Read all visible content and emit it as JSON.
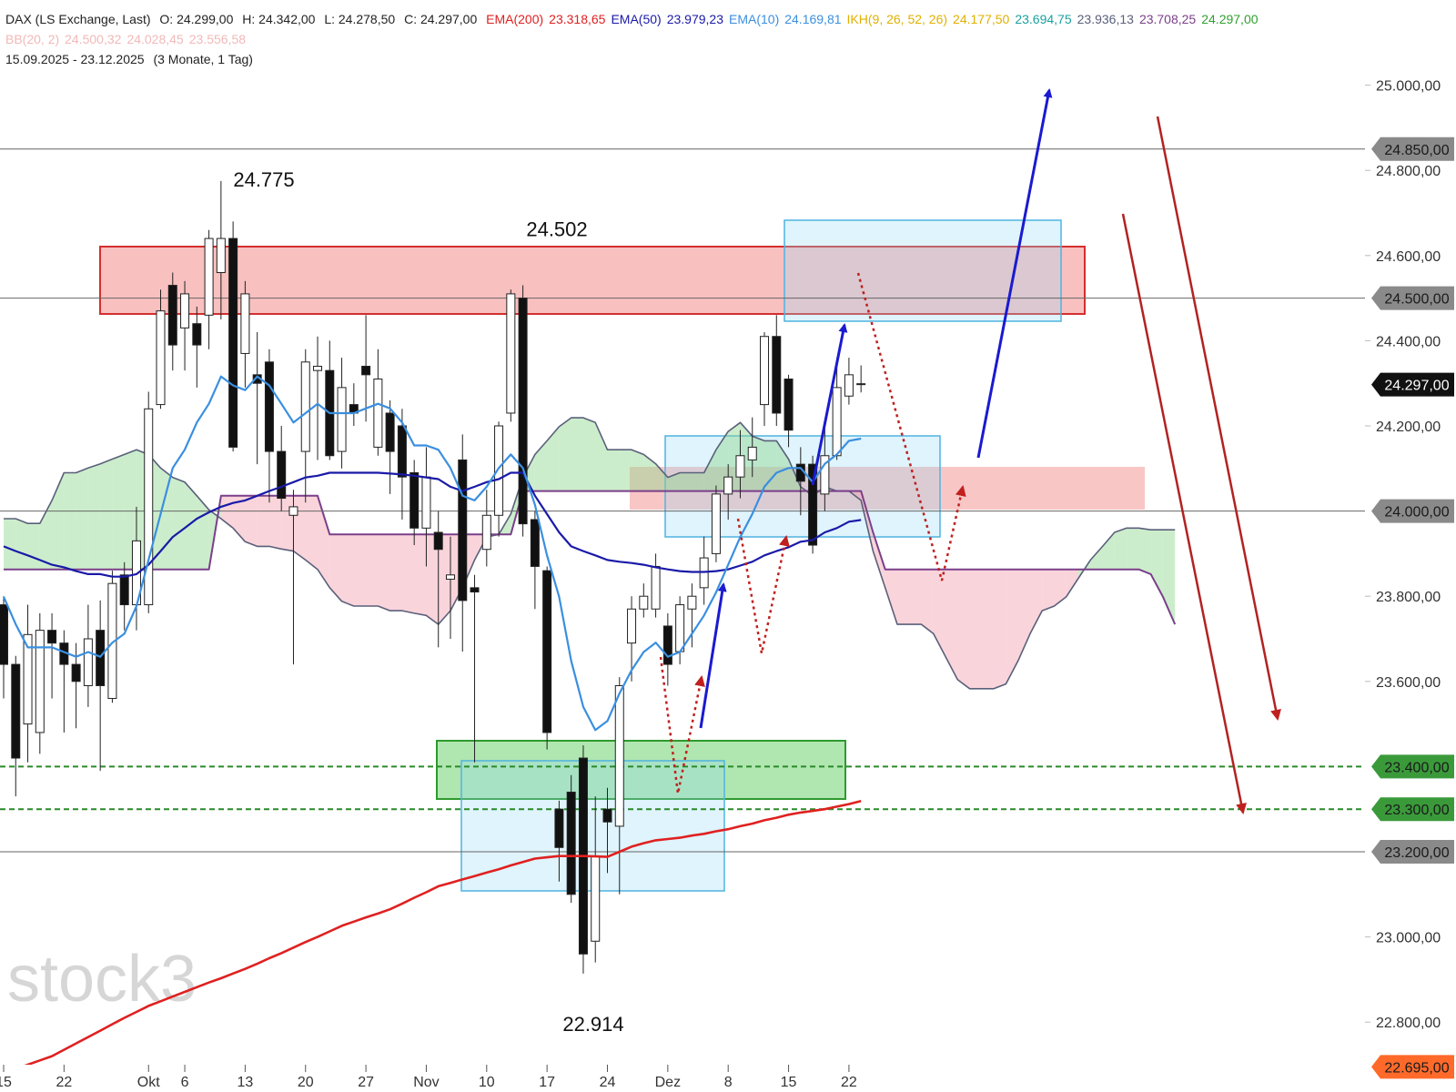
{
  "chart_data": {
    "type": "candlestick",
    "header": {
      "symbol": "DAX (LS Exchange, Last)",
      "ohlc": [
        "O: 24.299,00",
        "H: 24.342,00",
        "L: 24.278,50",
        "C: 24.297,00"
      ],
      "indicators": [
        {
          "name": "IKH(9, 26, 52, 26)",
          "values": [
            "24.177,50",
            "23.694,75",
            "23.936,13",
            "23.708,25",
            "24.297,00"
          ],
          "colors": [
            "#e0b000",
            "#1aa0a0",
            "#5a607a",
            "#7b3f8a",
            "#30a030"
          ]
        },
        {
          "name": "BB(20, 2)",
          "values": [
            "24.500,32",
            "24.028,45",
            "23.556,58"
          ],
          "colors": [
            "#f2b8b8",
            "#f2b8b8",
            "#f2b8b8"
          ]
        }
      ],
      "range": "15.09.2025 - 23.12.2025",
      "range_note": "(3 Monate, 1 Tag)"
    },
    "watermark": "stock3",
    "categories": [
      "15",
      null,
      null,
      null,
      null,
      "22",
      null,
      null,
      null,
      null,
      null,
      null,
      "Okt",
      null,
      null,
      "6",
      null,
      null,
      null,
      null,
      "13",
      null,
      null,
      null,
      null,
      "20",
      null,
      null,
      null,
      null,
      "27",
      null,
      null,
      null,
      null,
      "Nov",
      null,
      null,
      null,
      null,
      "10",
      null,
      null,
      null,
      null,
      "17",
      null,
      null,
      null,
      null,
      "24",
      null,
      null,
      null,
      null,
      "Dez",
      null,
      null,
      null,
      null,
      "8",
      null,
      null,
      null,
      null,
      "15",
      null,
      null,
      null,
      null,
      "22",
      null,
      null,
      null,
      null,
      null,
      null,
      null,
      null,
      null,
      null,
      null,
      null,
      null,
      null,
      null,
      null,
      null,
      null,
      null,
      null,
      null,
      null,
      null,
      null,
      null,
      null,
      null
    ],
    "candles": {
      "open": [
        23780,
        23640,
        23500,
        23480,
        23720,
        23690,
        23640,
        23590,
        23720,
        23560,
        23850,
        23780,
        23780,
        24250,
        24530,
        24430,
        24440,
        24460,
        24560,
        24640,
        24370,
        24320,
        24350,
        24140,
        23990,
        24140,
        24330,
        24330,
        24140,
        24250,
        24340,
        24150,
        24230,
        24200,
        24090,
        23960,
        23950,
        23840,
        24120,
        23820,
        23910,
        23990,
        24230,
        24500,
        23980,
        23860,
        23300,
        23340,
        23420,
        22990,
        23300,
        23260,
        23690,
        23770,
        23770,
        23730,
        23670,
        23770,
        23820,
        23900,
        24040,
        24080,
        24120,
        24250,
        24410,
        24310,
        24110,
        24110,
        24040,
        24130,
        24270,
        24299,
        null,
        null,
        null,
        null,
        null,
        null,
        null,
        null,
        null,
        null,
        null,
        null,
        null,
        null,
        null,
        null,
        null,
        null,
        null,
        null,
        null,
        null,
        null,
        null,
        null,
        null
      ],
      "high": [
        23800,
        23660,
        23780,
        23760,
        23760,
        23720,
        23690,
        23780,
        23790,
        23860,
        23880,
        24010,
        24280,
        24520,
        24560,
        24540,
        24480,
        24660,
        24775,
        24680,
        24540,
        24420,
        24380,
        24200,
        24050,
        24380,
        24410,
        24400,
        24360,
        24300,
        24460,
        24380,
        24260,
        24240,
        24120,
        24150,
        24000,
        23940,
        24180,
        23850,
        24050,
        24210,
        24520,
        24530,
        24000,
        23870,
        23320,
        23380,
        23450,
        23330,
        23350,
        23610,
        23800,
        23830,
        23900,
        23760,
        23800,
        23830,
        23940,
        24060,
        24110,
        24190,
        24220,
        24420,
        24460,
        24320,
        24150,
        24130,
        24200,
        24360,
        24360,
        24342,
        null,
        null,
        null,
        null,
        null,
        null,
        null,
        null,
        null,
        null,
        null,
        null,
        null,
        null,
        null,
        null,
        null,
        null,
        null,
        null,
        null,
        null,
        null,
        null,
        null,
        null
      ],
      "low": [
        23560,
        23330,
        23410,
        23430,
        23560,
        23480,
        23490,
        23540,
        23390,
        23550,
        23720,
        23720,
        23760,
        24240,
        24330,
        24330,
        24290,
        24380,
        24450,
        24140,
        24290,
        24110,
        24020,
        24000,
        23640,
        24020,
        24120,
        24120,
        24100,
        24200,
        24210,
        24130,
        24040,
        23980,
        23920,
        23870,
        23680,
        23700,
        23670,
        23410,
        23870,
        23940,
        24210,
        23940,
        23770,
        23440,
        23130,
        23080,
        22914,
        22940,
        23150,
        23100,
        23600,
        23750,
        23750,
        23590,
        23640,
        23680,
        23780,
        23880,
        23980,
        24030,
        24080,
        24200,
        24200,
        24150,
        23990,
        23900,
        24000,
        24120,
        24250,
        24278.5,
        null,
        null,
        null,
        null,
        null,
        null,
        null,
        null,
        null,
        null,
        null,
        null,
        null,
        null,
        null,
        null,
        null,
        null,
        null,
        null,
        null,
        null,
        null,
        null,
        null,
        null
      ],
      "close": [
        23640,
        23420,
        23710,
        23720,
        23690,
        23640,
        23600,
        23700,
        23590,
        23830,
        23780,
        23930,
        24240,
        24470,
        24390,
        24510,
        24390,
        24640,
        24640,
        24150,
        24510,
        24300,
        24140,
        24030,
        24010,
        24350,
        24340,
        24130,
        24290,
        24230,
        24320,
        24310,
        24140,
        24080,
        23960,
        24080,
        23910,
        23850,
        23790,
        23810,
        23990,
        24200,
        24510,
        23970,
        23870,
        23480,
        23210,
        23100,
        22960,
        23190,
        23270,
        23590,
        23770,
        23800,
        23870,
        23640,
        23780,
        23800,
        23890,
        24040,
        24080,
        24130,
        24150,
        24410,
        24230,
        24190,
        24070,
        23920,
        24130,
        24290,
        24320,
        24297,
        null,
        null,
        null,
        null,
        null,
        null,
        null,
        null,
        null,
        null,
        null,
        null,
        null,
        null,
        null,
        null,
        null,
        null,
        null,
        null,
        null,
        null,
        null,
        null,
        null,
        null
      ]
    },
    "series": [
      {
        "name": "EMA(200)",
        "legend_value": "23.318,65",
        "color": "#e02020",
        "values": [
          22681,
          22690,
          22700,
          22710,
          22720,
          22735,
          22750,
          22765,
          22780,
          22795,
          22810,
          22824,
          22838,
          22849,
          22860,
          22871,
          22882,
          22893,
          22903,
          22914,
          22925,
          22937,
          22950,
          22962,
          22975,
          22988,
          23000,
          23013,
          23026,
          23036,
          23046,
          23055,
          23065,
          23078,
          23092,
          23105,
          23119,
          23127,
          23135,
          23143,
          23151,
          23159,
          23168,
          23176,
          23184,
          23187,
          23190,
          23190,
          23190,
          23189,
          23188,
          23200,
          23212,
          23220,
          23227,
          23230,
          23233,
          23238,
          23242,
          23248,
          23253,
          23260,
          23266,
          23274,
          23280,
          23287,
          23292,
          23296,
          23300,
          23306,
          23312,
          23319,
          null,
          null,
          null,
          null,
          null,
          null,
          null,
          null,
          null,
          null,
          null,
          null,
          null,
          null,
          null,
          null,
          null,
          null,
          null,
          null,
          null,
          null,
          null,
          null,
          null,
          null
        ]
      },
      {
        "name": "EMA(50)",
        "legend_value": "23.979,23",
        "color": "#1a1aa8",
        "values": [
          23917,
          23906,
          23896,
          23885,
          23874,
          23868,
          23859,
          23852,
          23852,
          23846,
          23846,
          23852,
          23874,
          23906,
          23939,
          23960,
          23982,
          23997,
          24010,
          24019,
          24025,
          24036,
          24047,
          24057,
          24068,
          24079,
          24083,
          24090,
          24090,
          24090,
          24090,
          24090,
          24088,
          24086,
          24083,
          24079,
          24075,
          24057,
          24047,
          24057,
          24068,
          24075,
          24090,
          24090,
          24036,
          23993,
          23950,
          23917,
          23906,
          23896,
          23885,
          23881,
          23878,
          23874,
          23868,
          23863,
          23859,
          23857,
          23857,
          23859,
          23863,
          23872,
          23881,
          23896,
          23906,
          23915,
          23928,
          23932,
          23950,
          23960,
          23975,
          23979,
          null,
          null,
          null,
          null,
          null,
          null,
          null,
          null,
          null,
          null,
          null,
          null,
          null,
          null,
          null,
          null,
          null,
          null,
          null,
          null,
          null,
          null,
          null,
          null,
          null,
          null
        ]
      },
      {
        "name": "EMA(10)",
        "legend_value": "24.169,81",
        "color": "#3a8fe0",
        "values": [
          23799,
          23734,
          23680,
          23680,
          23680,
          23669,
          23658,
          23669,
          23658,
          23691,
          23712,
          23777,
          23885,
          23993,
          24101,
          24144,
          24208,
          24252,
          24316,
          24295,
          24284,
          24316,
          24295,
          24252,
          24208,
          24230,
          24252,
          24230,
          24230,
          24230,
          24241,
          24252,
          24241,
          24208,
          24154,
          24154,
          24144,
          24101,
          24036,
          24025,
          24057,
          24101,
          24133,
          24101,
          24014,
          23896,
          23799,
          23648,
          23540,
          23486,
          23507,
          23572,
          23626,
          23669,
          23691,
          23658,
          23669,
          23712,
          23755,
          23809,
          23874,
          23939,
          23993,
          24057,
          24090,
          24101,
          24101,
          24068,
          24111,
          24133,
          24165,
          24170,
          null,
          null,
          null,
          null,
          null,
          null,
          null,
          null,
          null,
          null,
          null,
          null,
          null,
          null,
          null,
          null,
          null,
          null,
          null,
          null,
          null,
          null,
          null,
          null,
          null,
          null
        ]
      }
    ],
    "cloud": {
      "span_a_color": "#5a607a",
      "span_b_color": "#7b3f8a",
      "up_color": "#8fd88f",
      "down_color": "#f2a0b0",
      "span_a": [
        23982,
        23982,
        23971,
        23971,
        24025,
        24090,
        24090,
        24101,
        24111,
        24122,
        24133,
        24144,
        24133,
        24101,
        24079,
        24068,
        24036,
        24003,
        23982,
        23960,
        23928,
        23917,
        23917,
        23911,
        23906,
        23885,
        23863,
        23820,
        23788,
        23777,
        23777,
        23777,
        23766,
        23766,
        23760,
        23755,
        23734,
        23766,
        23820,
        23885,
        23939,
        23945,
        23993,
        24079,
        24133,
        24165,
        24198,
        24219,
        24219,
        24208,
        24144,
        24144,
        24144,
        24133,
        24111,
        24079,
        24090,
        24090,
        24090,
        24144,
        24187,
        24208,
        24176,
        24165,
        24165,
        24122,
        24057,
        24036,
        24057,
        24047,
        24047,
        24025,
        23906,
        23820,
        23734,
        23734,
        23734,
        23712,
        23658,
        23604,
        23583,
        23583,
        23583,
        23594,
        23648,
        23712,
        23766,
        23777,
        23799,
        23842,
        23885,
        23917,
        23950,
        23960,
        23960,
        23956,
        23956,
        23956
      ],
      "span_b": [
        23863,
        23863,
        23863,
        23863,
        23863,
        23863,
        23863,
        23863,
        23863,
        23863,
        23863,
        23863,
        23863,
        23863,
        23863,
        23863,
        23863,
        23863,
        24036,
        24036,
        24036,
        24036,
        24036,
        24036,
        24036,
        24036,
        24036,
        23945,
        23945,
        23945,
        23945,
        23945,
        23945,
        23945,
        23945,
        23945,
        23945,
        23945,
        23945,
        23945,
        23945,
        23945,
        23945,
        24047,
        24047,
        24047,
        24047,
        24047,
        24047,
        24047,
        24047,
        24047,
        24047,
        24047,
        24047,
        24047,
        24047,
        24047,
        24047,
        24047,
        24047,
        24047,
        24047,
        24047,
        24047,
        24047,
        24047,
        24047,
        24047,
        24047,
        24047,
        24047,
        23950,
        23863,
        23863,
        23863,
        23863,
        23863,
        23863,
        23863,
        23863,
        23863,
        23863,
        23863,
        23863,
        23863,
        23863,
        23863,
        23863,
        23863,
        23863,
        23863,
        23863,
        23863,
        23863,
        23852,
        23799,
        23734
      ]
    },
    "levels": [
      {
        "value": 24850,
        "label": "24.850,00",
        "color": "#8a8a8a",
        "style": "solid"
      },
      {
        "value": 24500,
        "label": "24.500,00",
        "color": "#8a8a8a",
        "style": "solid"
      },
      {
        "value": 24297,
        "label": "24.297,00",
        "color": "#111111",
        "style": "none"
      },
      {
        "value": 24000,
        "label": "24.000,00",
        "color": "#8a8a8a",
        "style": "solid"
      },
      {
        "value": 23400,
        "label": "23.400,00",
        "color": "#3a9a3a",
        "style": "dashed"
      },
      {
        "value": 23300,
        "label": "23.300,00",
        "color": "#3a9a3a",
        "style": "dashed"
      },
      {
        "value": 23200,
        "label": "23.200,00",
        "color": "#8a8a8a",
        "style": "solid"
      },
      {
        "value": 22695,
        "label": "22.695,00",
        "color": "#ff6a2a",
        "style": "solid"
      }
    ],
    "annotations": [
      {
        "label": "24.775",
        "value": 24775
      },
      {
        "label": "24.502",
        "value": 24502
      },
      {
        "label": "22.914",
        "value": 22914
      }
    ],
    "ylim": [
      22700,
      25200
    ],
    "yticks": [
      {
        "value": 25000,
        "label": "25.000,00"
      },
      {
        "value": 24800,
        "label": "24.800,00"
      },
      {
        "value": 24600,
        "label": "24.600,00"
      },
      {
        "value": 24400,
        "label": "24.400,00"
      },
      {
        "value": 24200,
        "label": "24.200,00"
      },
      {
        "value": 23800,
        "label": "23.800,00"
      },
      {
        "value": 23600,
        "label": "23.600,00"
      },
      {
        "value": 23000,
        "label": "23.000,00"
      },
      {
        "value": 22800,
        "label": "22.800,00"
      }
    ],
    "up_color": "#ffffff",
    "down_color": "#111111",
    "grid": false
  }
}
